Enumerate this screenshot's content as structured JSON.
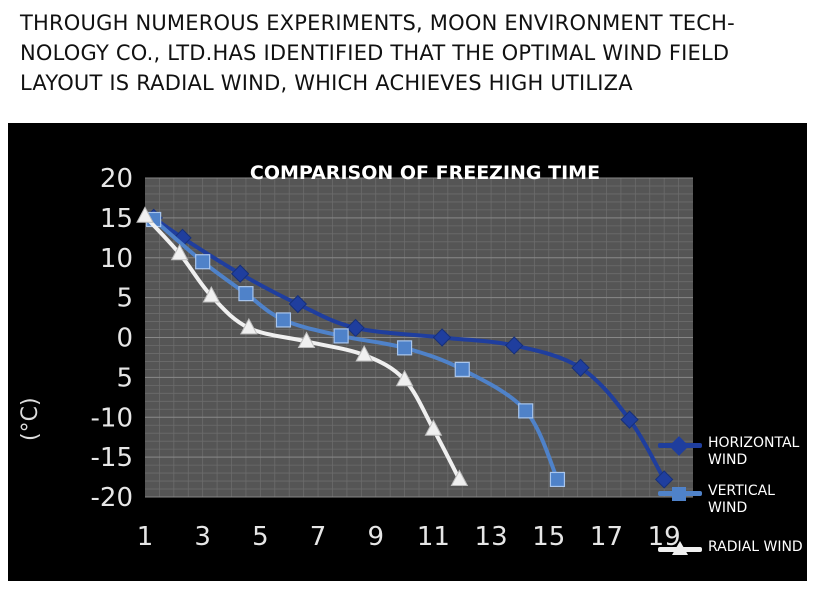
{
  "caption": {
    "line1": "THROUGH NUMEROUS EXPERIMENTS, MOON ENVIRONMENT TECH-",
    "line2": "NOLOGY CO., LTD.HAS IDENTIFIED THAT THE OPTIMAL WIND FIELD",
    "line3": "LAYOUT IS RADIAL WIND, WHICH ACHIEVES HIGH UTILIZA"
  },
  "chart_data": {
    "type": "line",
    "title": "COMPARISON OF FREEZING TIME",
    "ylabel": "(°C)",
    "xlabel": "",
    "xlim": [
      1,
      20
    ],
    "ylim": [
      -20,
      20
    ],
    "x_ticks": [
      "1",
      "3",
      "5",
      "7",
      "9",
      "11",
      "13",
      "15",
      "17",
      "19"
    ],
    "y_ticks": [
      "20",
      "15",
      "10",
      "5",
      "0",
      "5",
      "-10",
      "-15",
      "-20"
    ],
    "grid": true,
    "legend_position": "right",
    "series": [
      {
        "name": "HORIZONTAL WIND",
        "color": "#1f3e9e",
        "marker": "diamond",
        "x": [
          1.3,
          2.3,
          4.3,
          6.3,
          8.3,
          11.3,
          13.8,
          16.1,
          17.8,
          19.0
        ],
        "y": [
          15,
          12.5,
          8,
          4.2,
          1.2,
          0,
          -1,
          -3.8,
          -10.3,
          -17.8
        ]
      },
      {
        "name": "VERTICAL WIND",
        "color": "#4f82c9",
        "marker": "square",
        "x": [
          1.3,
          3.0,
          4.5,
          5.8,
          7.8,
          10.0,
          12.0,
          14.2,
          15.3
        ],
        "y": [
          14.8,
          9.5,
          5.5,
          2.2,
          0.2,
          -1.3,
          -4,
          -9.2,
          -17.8
        ]
      },
      {
        "name": "RADIAL WIND",
        "color": "#f0f0f0",
        "marker": "triangle",
        "x": [
          1.0,
          2.2,
          3.3,
          4.6,
          6.6,
          8.6,
          10.0,
          11.0,
          11.9
        ],
        "y": [
          15.2,
          10.5,
          5.2,
          1.2,
          -0.5,
          -2.2,
          -5.3,
          -11.5,
          -17.8
        ]
      }
    ]
  }
}
